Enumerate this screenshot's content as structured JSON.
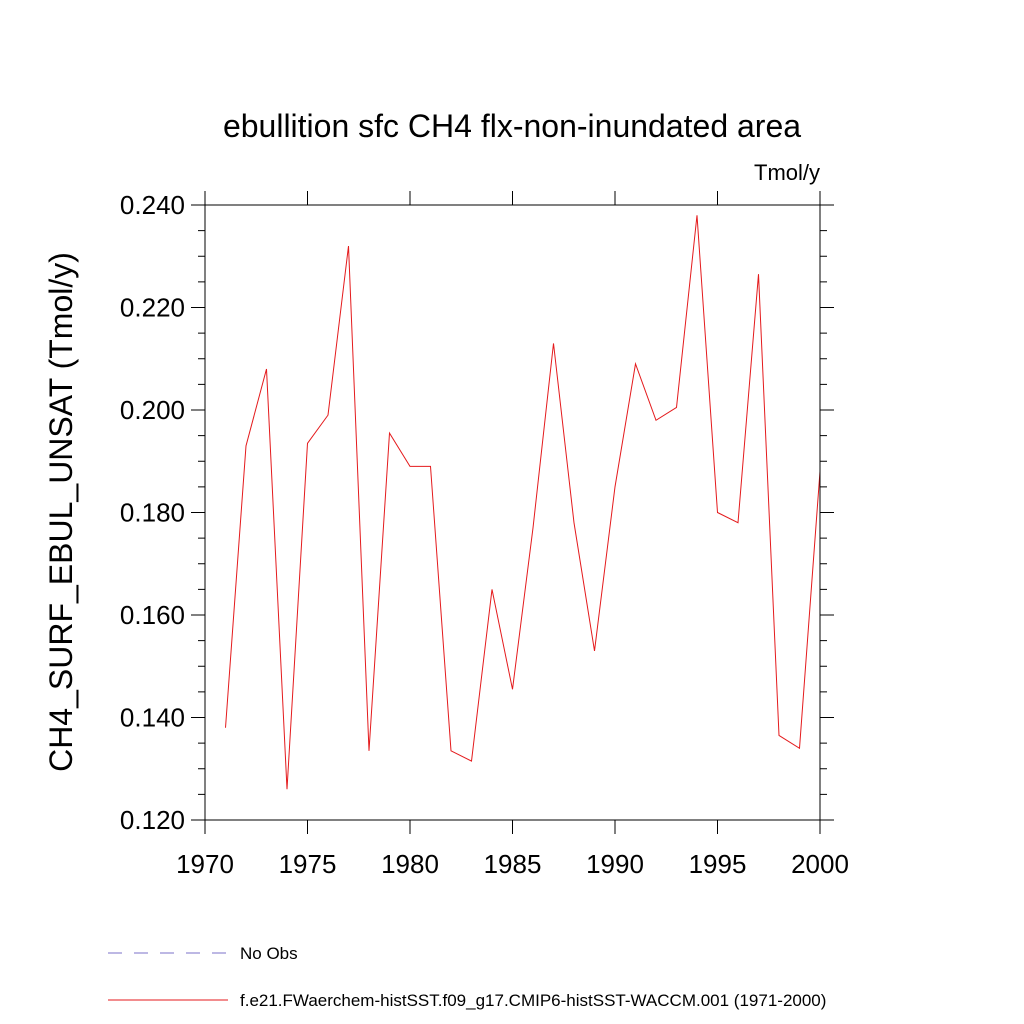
{
  "chart_data": {
    "type": "line",
    "title": "ebullition sfc CH4 flx-non-inundated area",
    "units_label": "Tmol/y",
    "ylabel": "CH4_SURF_EBUL_UNSAT  (Tmol/y)",
    "xlabel": "",
    "xlim": [
      1970,
      2000
    ],
    "ylim": [
      0.12,
      0.24
    ],
    "x_ticks": [
      1970,
      1975,
      1980,
      1985,
      1990,
      1995,
      2000
    ],
    "x_tick_labels": [
      "1970",
      "1975",
      "1980",
      "1985",
      "1990",
      "1995",
      "2000"
    ],
    "y_ticks": [
      0.12,
      0.14,
      0.16,
      0.18,
      0.2,
      0.22,
      0.24
    ],
    "y_tick_labels": [
      "0.120",
      "0.140",
      "0.160",
      "0.180",
      "0.200",
      "0.220",
      "0.240"
    ],
    "grid": false,
    "legend_position": "bottom",
    "legend": [
      {
        "label": "No Obs",
        "color": "#7b72c8",
        "style": "dashed"
      },
      {
        "label": "f.e21.FWaerchem-histSST.f09_g17.CMIP6-histSST-WACCM.001 (1971-2000)",
        "color": "#e41a1c",
        "style": "solid"
      }
    ],
    "series": [
      {
        "name": "f.e21.FWaerchem-histSST.f09_g17.CMIP6-histSST-WACCM.001 (1971-2000)",
        "color": "#e41a1c",
        "x": [
          1971,
          1972,
          1973,
          1974,
          1975,
          1976,
          1977,
          1978,
          1979,
          1980,
          1981,
          1982,
          1983,
          1984,
          1985,
          1986,
          1987,
          1988,
          1989,
          1990,
          1991,
          1992,
          1993,
          1994,
          1995,
          1996,
          1997,
          1998,
          1999,
          2000
        ],
        "values": [
          0.138,
          0.193,
          0.208,
          0.126,
          0.1935,
          0.199,
          0.232,
          0.1335,
          0.1955,
          0.189,
          0.189,
          0.1335,
          0.1315,
          0.165,
          0.1455,
          0.177,
          0.213,
          0.178,
          0.153,
          0.185,
          0.209,
          0.198,
          0.2005,
          0.238,
          0.18,
          0.178,
          0.2265,
          0.1365,
          0.134,
          0.188
        ]
      }
    ]
  }
}
